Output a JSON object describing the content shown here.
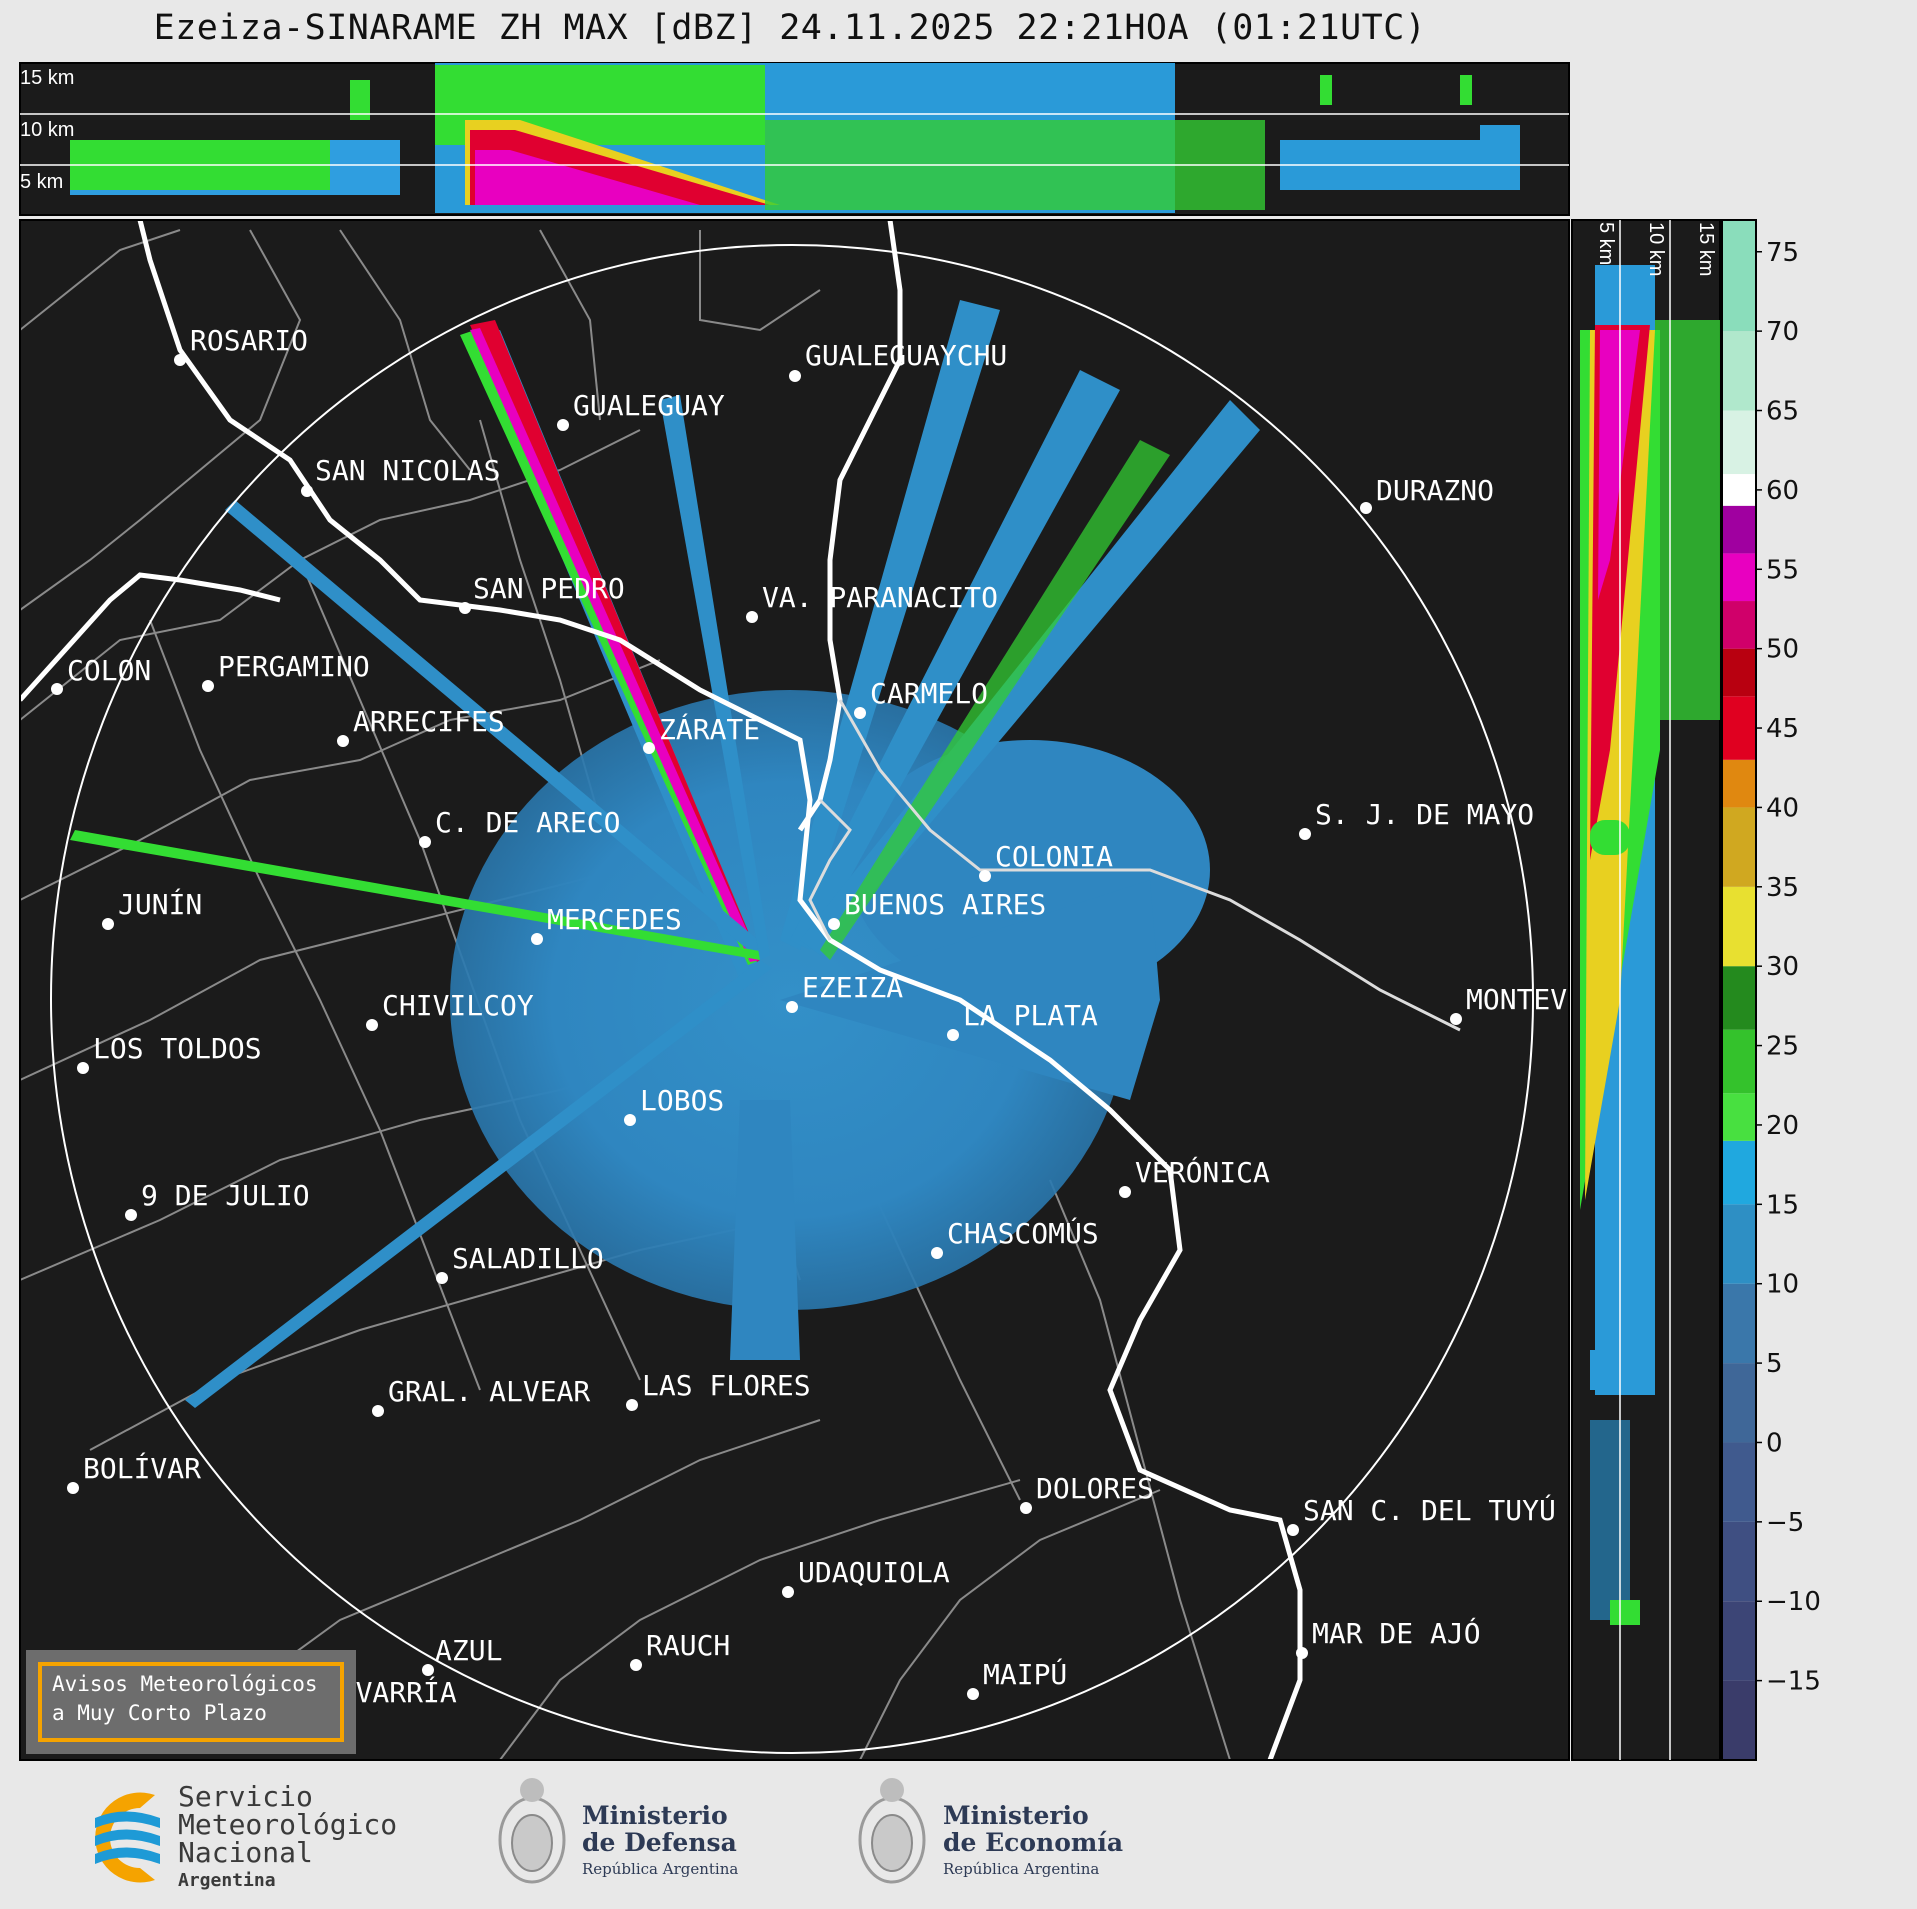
{
  "title": "Ezeiza-SINARAME ZH MAX [dBZ] 24.11.2025 22:21HOA (01:21UTC)",
  "height_labels": [
    "15 km",
    "10 km",
    "5 km"
  ],
  "cities": [
    {
      "name": "ROSARIO"
    },
    {
      "name": "GUALEGUAYCHU"
    },
    {
      "name": "GUALEGUAY"
    },
    {
      "name": "SAN NICOLAS"
    },
    {
      "name": "DURAZNO"
    },
    {
      "name": "SAN PEDRO"
    },
    {
      "name": "VA. PARANACITO"
    },
    {
      "name": "COLON"
    },
    {
      "name": "PERGAMINO"
    },
    {
      "name": "CARMELO"
    },
    {
      "name": "ARRECIFES"
    },
    {
      "name": "ZÁRATE"
    },
    {
      "name": "S. J. DE MAYO"
    },
    {
      "name": "C. DE ARECO"
    },
    {
      "name": "COLONIA"
    },
    {
      "name": "JUNÍN"
    },
    {
      "name": "BUENOS AIRES"
    },
    {
      "name": "MERCEDES"
    },
    {
      "name": "EZEIZA"
    },
    {
      "name": "MONTEVIDEO"
    },
    {
      "name": "CHIVILCOY"
    },
    {
      "name": "LA PLATA"
    },
    {
      "name": "LOS TOLDOS"
    },
    {
      "name": "LOBOS"
    },
    {
      "name": "VERÓNICA"
    },
    {
      "name": "9 DE JULIO"
    },
    {
      "name": "CHASCOMÚS"
    },
    {
      "name": "SALADILLO"
    },
    {
      "name": "GRAL. ALVEAR"
    },
    {
      "name": "LAS FLORES"
    },
    {
      "name": "BOLÍVAR"
    },
    {
      "name": "DOLORES"
    },
    {
      "name": "SAN C. DEL TUYÚ"
    },
    {
      "name": "UDAQUIOLA"
    },
    {
      "name": "MAR DE AJÓ"
    },
    {
      "name": "AZUL"
    },
    {
      "name": "RAUCH"
    },
    {
      "name": "OLAVARRÍA"
    },
    {
      "name": "MAIPÚ"
    }
  ],
  "colorbar": {
    "unit": "dBZ",
    "ticks": [
      "75",
      "70",
      "65",
      "60",
      "55",
      "50",
      "45",
      "40",
      "35",
      "30",
      "25",
      "20",
      "15",
      "10",
      "5",
      "0",
      "−5",
      "−10",
      "−15"
    ],
    "range": [
      -20,
      77
    ]
  },
  "warning": {
    "line1": "Avisos Meteorológicos",
    "line2": "a Muy Corto Plazo"
  },
  "logos": {
    "smn": {
      "line1": "Servicio",
      "line2": "Meteorológico",
      "line3": "Nacional",
      "line4": "Argentina"
    },
    "defensa": {
      "line1": "Ministerio",
      "line2": "de Defensa",
      "line3": "República Argentina"
    },
    "economia": {
      "line1": "Ministerio",
      "line2": "de Economía",
      "line3": "República Argentina"
    }
  },
  "colors": {
    "map_bg": "#1b1b1b",
    "echo_base": "#2f86c0",
    "coast": "#ffffff",
    "border": "#8a8a8a",
    "accent": "#f5a300"
  }
}
